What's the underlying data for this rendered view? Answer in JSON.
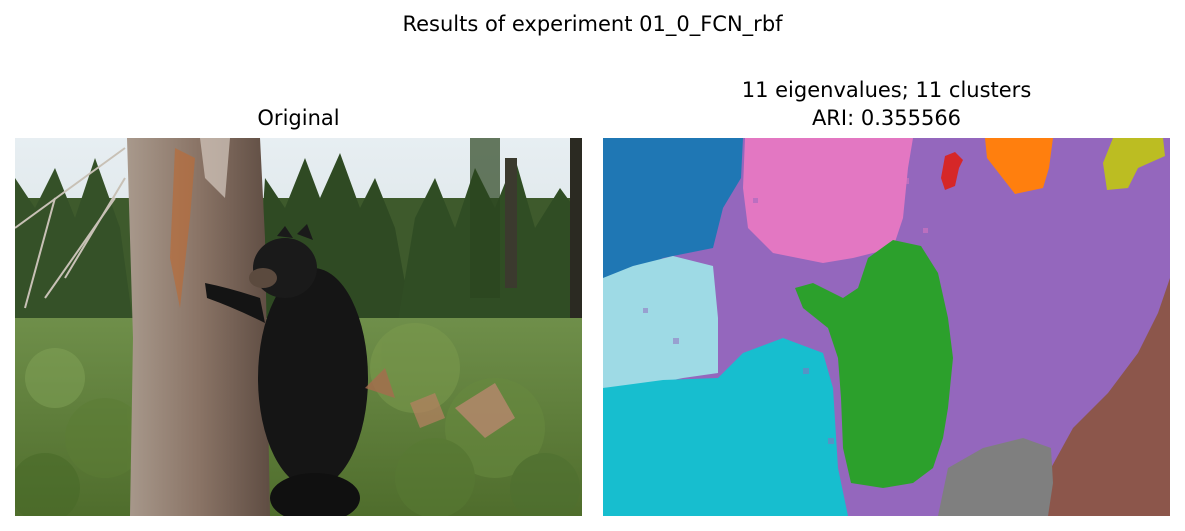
{
  "figure": {
    "suptitle": "Results of experiment 01_0_FCN_rbf"
  },
  "left": {
    "title": "Original",
    "image_description": "bear-climbing-tree-photo"
  },
  "right": {
    "title_line1": "11 eigenvalues; 11 clusters",
    "title_line2": "ARI: 0.355566",
    "eigenvalues": 11,
    "clusters": 11,
    "ari": 0.355566,
    "cluster_colors": [
      "#1f77b4",
      "#e377c2",
      "#9467bd",
      "#d62728",
      "#ff7f0e",
      "#bcbd22",
      "#9edae5",
      "#17becf",
      "#2ca02c",
      "#7f7f7f",
      "#8c564b"
    ]
  }
}
